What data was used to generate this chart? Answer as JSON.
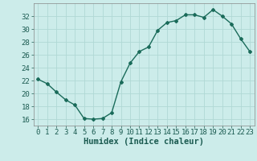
{
  "x": [
    0,
    1,
    2,
    3,
    4,
    5,
    6,
    7,
    8,
    9,
    10,
    11,
    12,
    13,
    14,
    15,
    16,
    17,
    18,
    19,
    20,
    21,
    22,
    23
  ],
  "y": [
    22.2,
    21.5,
    20.2,
    19.0,
    18.2,
    16.1,
    16.0,
    16.1,
    17.0,
    21.8,
    24.7,
    26.5,
    27.2,
    29.8,
    31.0,
    31.3,
    32.2,
    32.2,
    31.8,
    33.0,
    32.0,
    30.8,
    28.5,
    26.5
  ],
  "line_color": "#1a6b5a",
  "marker": "D",
  "marker_size": 2,
  "bg_color": "#ccecea",
  "grid_color": "#b0d8d5",
  "xlabel": "Humidex (Indice chaleur)",
  "ylim": [
    15,
    34
  ],
  "xlim": [
    -0.5,
    23.5
  ],
  "yticks": [
    16,
    18,
    20,
    22,
    24,
    26,
    28,
    30,
    32
  ],
  "xticks": [
    0,
    1,
    2,
    3,
    4,
    5,
    6,
    7,
    8,
    9,
    10,
    11,
    12,
    13,
    14,
    15,
    16,
    17,
    18,
    19,
    20,
    21,
    22,
    23
  ],
  "xlabel_fontsize": 7.5,
  "tick_fontsize": 6.5
}
